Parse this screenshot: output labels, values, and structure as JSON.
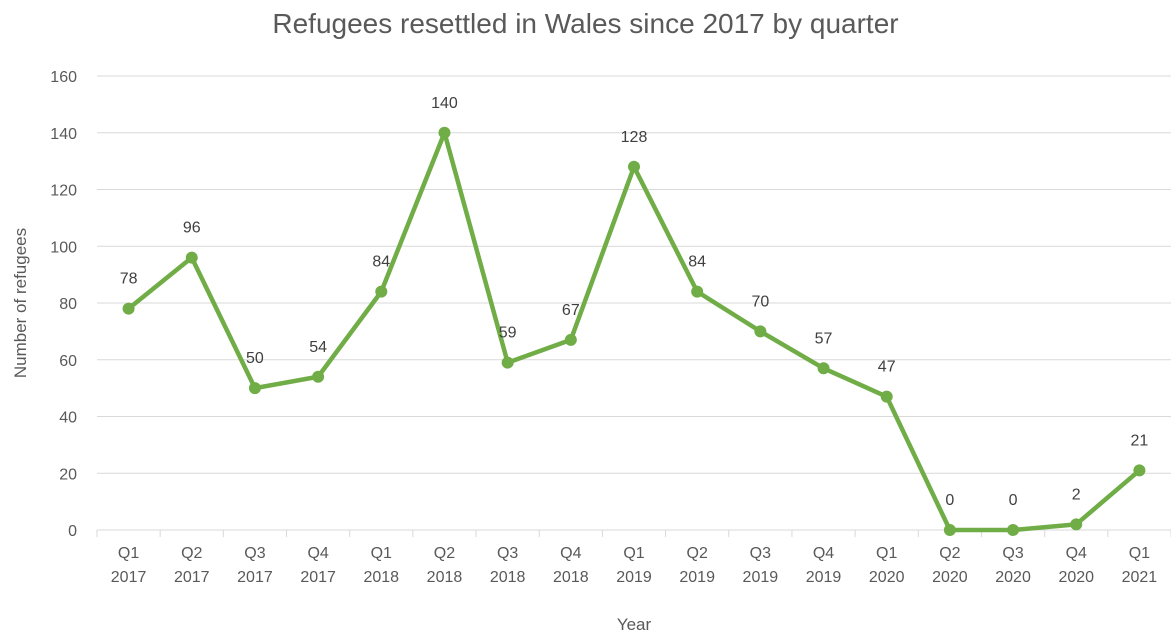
{
  "chart_data": {
    "type": "line",
    "title": "Refugees resettled in Wales since 2017 by quarter",
    "xlabel": "Year",
    "ylabel": "Number of refugees",
    "ylim": [
      0,
      160
    ],
    "yticks": [
      0,
      20,
      40,
      60,
      80,
      100,
      120,
      140,
      160
    ],
    "categories": [
      [
        "Q1",
        "2017"
      ],
      [
        "Q2",
        "2017"
      ],
      [
        "Q3",
        "2017"
      ],
      [
        "Q4",
        "2017"
      ],
      [
        "Q1",
        "2018"
      ],
      [
        "Q2",
        "2018"
      ],
      [
        "Q3",
        "2018"
      ],
      [
        "Q4",
        "2018"
      ],
      [
        "Q1",
        "2019"
      ],
      [
        "Q2",
        "2019"
      ],
      [
        "Q3",
        "2019"
      ],
      [
        "Q4",
        "2019"
      ],
      [
        "Q1",
        "2020"
      ],
      [
        "Q2",
        "2020"
      ],
      [
        "Q3",
        "2020"
      ],
      [
        "Q4",
        "2020"
      ],
      [
        "Q1",
        "2021"
      ]
    ],
    "values": [
      78,
      96,
      50,
      54,
      84,
      140,
      59,
      67,
      128,
      84,
      70,
      57,
      47,
      0,
      0,
      2,
      21
    ],
    "grid": true,
    "legend": "none",
    "series_color": "#70ad47",
    "grid_color": "#d9d9d9"
  }
}
